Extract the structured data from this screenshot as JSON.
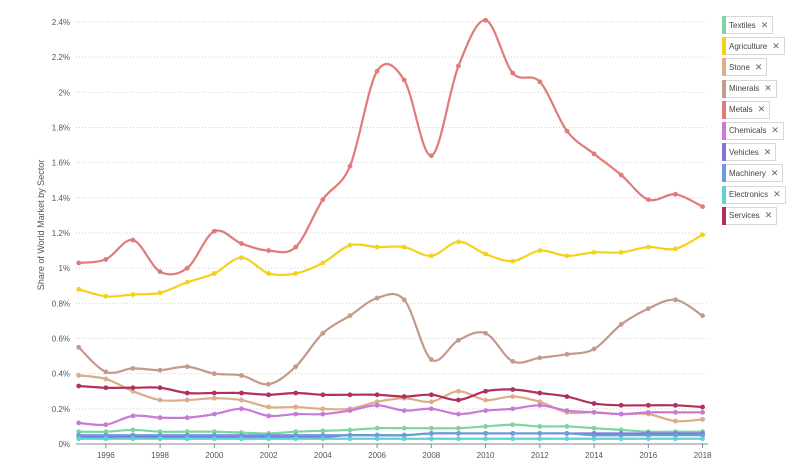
{
  "chart_data": {
    "type": "line",
    "ylabel": "Share of World Market by Sector",
    "xlabel": "",
    "x": [
      1995,
      1996,
      1997,
      1998,
      1999,
      2000,
      2001,
      2002,
      2003,
      2004,
      2005,
      2006,
      2007,
      2008,
      2009,
      2010,
      2011,
      2012,
      2013,
      2014,
      2015,
      2016,
      2017,
      2018
    ],
    "x_ticks": [
      "1996",
      "1998",
      "2000",
      "2002",
      "2004",
      "2006",
      "2008",
      "2010",
      "2012",
      "2014",
      "2016",
      "2018"
    ],
    "y_ticks": [
      "0%",
      "0.2%",
      "0.4%",
      "0.6%",
      "0.8%",
      "1%",
      "1.2%",
      "1.4%",
      "1.6%",
      "1.8%",
      "2%",
      "2.2%",
      "2.4%"
    ],
    "ylim": [
      0,
      2.4
    ],
    "xlim": [
      1994.9,
      2018.2
    ],
    "grid": true,
    "legend_position": "right",
    "series": [
      {
        "name": "Textiles",
        "color": "#7fd4a3",
        "values": [
          0.07,
          0.07,
          0.08,
          0.07,
          0.07,
          0.07,
          0.065,
          0.06,
          0.07,
          0.075,
          0.08,
          0.09,
          0.09,
          0.09,
          0.09,
          0.1,
          0.11,
          0.1,
          0.1,
          0.09,
          0.08,
          0.07,
          0.07,
          0.07
        ]
      },
      {
        "name": "Agriculture",
        "color": "#f5d11c",
        "values": [
          0.88,
          0.84,
          0.85,
          0.86,
          0.92,
          0.97,
          1.06,
          0.97,
          0.97,
          1.03,
          1.13,
          1.12,
          1.12,
          1.07,
          1.15,
          1.08,
          1.04,
          1.1,
          1.07,
          1.09,
          1.09,
          1.12,
          1.11,
          1.19
        ]
      },
      {
        "name": "Stone",
        "color": "#d9ae88",
        "values": [
          0.39,
          0.37,
          0.3,
          0.25,
          0.25,
          0.26,
          0.25,
          0.21,
          0.21,
          0.2,
          0.2,
          0.24,
          0.26,
          0.24,
          0.3,
          0.25,
          0.27,
          0.24,
          0.18,
          0.18,
          0.17,
          0.17,
          0.13,
          0.14
        ]
      },
      {
        "name": "Minerals",
        "color": "#c49a8a",
        "values": [
          0.55,
          0.41,
          0.43,
          0.42,
          0.44,
          0.4,
          0.39,
          0.34,
          0.44,
          0.63,
          0.73,
          0.83,
          0.82,
          0.48,
          0.59,
          0.63,
          0.47,
          0.49,
          0.51,
          0.54,
          0.68,
          0.77,
          0.82,
          0.73
        ]
      },
      {
        "name": "Metals",
        "color": "#e07b78",
        "values": [
          1.03,
          1.05,
          1.16,
          0.98,
          1.0,
          1.21,
          1.14,
          1.1,
          1.12,
          1.39,
          1.58,
          2.12,
          2.07,
          1.64,
          2.15,
          2.41,
          2.11,
          2.06,
          1.78,
          1.65,
          1.53,
          1.39,
          1.42,
          1.35
        ]
      },
      {
        "name": "Chemicals",
        "color": "#c97ad9",
        "values": [
          0.12,
          0.11,
          0.16,
          0.15,
          0.15,
          0.17,
          0.2,
          0.16,
          0.17,
          0.17,
          0.19,
          0.22,
          0.19,
          0.2,
          0.17,
          0.19,
          0.2,
          0.22,
          0.19,
          0.18,
          0.17,
          0.18,
          0.18,
          0.18
        ]
      },
      {
        "name": "Vehicles",
        "color": "#7f78d6",
        "values": [
          0.04,
          0.04,
          0.04,
          0.04,
          0.04,
          0.04,
          0.04,
          0.04,
          0.04,
          0.04,
          0.05,
          0.05,
          0.05,
          0.06,
          0.06,
          0.06,
          0.06,
          0.06,
          0.06,
          0.06,
          0.06,
          0.06,
          0.06,
          0.06
        ]
      },
      {
        "name": "Machinery",
        "color": "#6c9bdb",
        "values": [
          0.05,
          0.05,
          0.05,
          0.05,
          0.05,
          0.05,
          0.05,
          0.05,
          0.05,
          0.05,
          0.05,
          0.05,
          0.05,
          0.06,
          0.06,
          0.06,
          0.06,
          0.06,
          0.06,
          0.05,
          0.05,
          0.05,
          0.05,
          0.05
        ]
      },
      {
        "name": "Electronics",
        "color": "#5fd3d3",
        "values": [
          0.03,
          0.03,
          0.03,
          0.03,
          0.03,
          0.03,
          0.03,
          0.03,
          0.03,
          0.03,
          0.03,
          0.03,
          0.03,
          0.03,
          0.03,
          0.03,
          0.03,
          0.03,
          0.03,
          0.03,
          0.03,
          0.03,
          0.03,
          0.03
        ]
      },
      {
        "name": "Services",
        "color": "#b0305f",
        "values": [
          0.33,
          0.32,
          0.32,
          0.32,
          0.29,
          0.29,
          0.29,
          0.28,
          0.29,
          0.28,
          0.28,
          0.28,
          0.27,
          0.28,
          0.25,
          0.3,
          0.31,
          0.29,
          0.27,
          0.23,
          0.22,
          0.22,
          0.22,
          0.21
        ]
      }
    ]
  },
  "legend": {
    "items": [
      {
        "label": "Textiles",
        "color": "#7fd4a3"
      },
      {
        "label": "Agriculture",
        "color": "#f5d11c"
      },
      {
        "label": "Stone",
        "color": "#d9ae88"
      },
      {
        "label": "Minerals",
        "color": "#c49a8a"
      },
      {
        "label": "Metals",
        "color": "#e07b78"
      },
      {
        "label": "Chemicals",
        "color": "#c97ad9"
      },
      {
        "label": "Vehicles",
        "color": "#7f78d6"
      },
      {
        "label": "Machinery",
        "color": "#6c9bdb"
      },
      {
        "label": "Electronics",
        "color": "#5fd3d3"
      },
      {
        "label": "Services",
        "color": "#b0305f"
      }
    ],
    "remove_glyph": "✕"
  }
}
